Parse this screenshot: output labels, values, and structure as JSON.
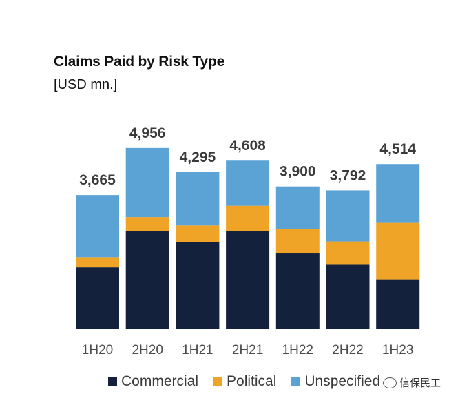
{
  "chart_data": {
    "type": "bar",
    "stacked": true,
    "title": "Claims Paid by Risk Type",
    "subtitle": "[USD mn.]",
    "categories": [
      "1H20",
      "2H20",
      "1H21",
      "2H21",
      "1H22",
      "2H22",
      "1H23"
    ],
    "totals": [
      "3,665",
      "4,956",
      "4,295",
      "4,608",
      "3,900",
      "3,792",
      "4,514"
    ],
    "series": [
      {
        "name": "Commercial",
        "color": "#14213d",
        "values": [
          1680,
          2680,
          2370,
          2680,
          2060,
          1750,
          1350
        ]
      },
      {
        "name": "Political",
        "color": "#f0a427",
        "values": [
          280,
          380,
          460,
          690,
          680,
          640,
          1550
        ]
      },
      {
        "name": "Unspecified",
        "color": "#5ba3d5",
        "values": [
          1705,
          1896,
          1465,
          1238,
          1160,
          1402,
          1614
        ]
      }
    ],
    "ylim": [
      0,
      5000
    ],
    "grid": false,
    "legend_position": "bottom"
  },
  "watermark": "信保民工"
}
